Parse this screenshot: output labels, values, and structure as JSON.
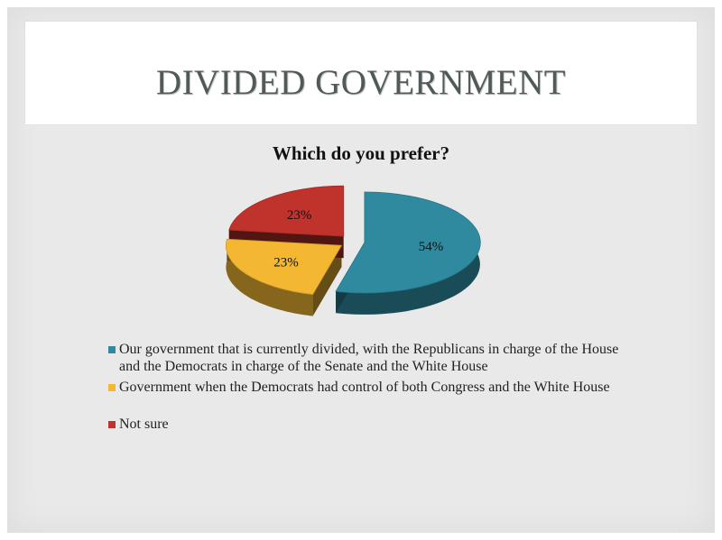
{
  "slide": {
    "title": "DIVIDED GOVERNMENT"
  },
  "chart_data": {
    "type": "pie",
    "title": "Which do you prefer?",
    "slices": [
      {
        "label": "Our government that is currently divided, with the Republicans in charge of the House and the Democrats in charge of the Senate and the White House",
        "value": 54,
        "value_label": "54%",
        "color": "#2f8aa0"
      },
      {
        "label": "Government when the Democrats had control of both Congress and the White House",
        "value": 23,
        "value_label": "23%",
        "color": "#f4b732"
      },
      {
        "label": "Not sure",
        "value": 23,
        "value_label": "23%",
        "color": "#c0322c"
      }
    ],
    "legend_position": "bottom",
    "exploded": true,
    "three_d": true
  }
}
